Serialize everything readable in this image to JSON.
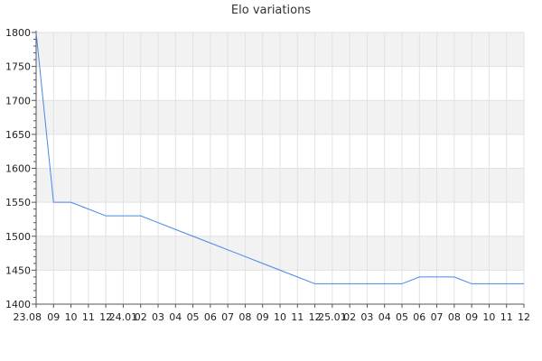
{
  "chart_data": {
    "type": "line",
    "title": "Elo variations",
    "xlabel": "",
    "ylabel": "",
    "ylim": [
      1400,
      1800
    ],
    "y_ticks": [
      1400,
      1450,
      1500,
      1550,
      1600,
      1650,
      1700,
      1750,
      1800
    ],
    "x_tick_labels": [
      "23.08",
      "09",
      "10",
      "11",
      "12",
      "24.01",
      "02",
      "03",
      "04",
      "05",
      "06",
      "07",
      "08",
      "09",
      "10",
      "11",
      "12",
      "25.01",
      "02",
      "03",
      "04",
      "05",
      "06",
      "07",
      "08",
      "09",
      "10",
      "11",
      "12"
    ],
    "grid": true,
    "line_color": "#4a86e8",
    "band_color": "#f2f2f2",
    "series": [
      {
        "values": [
          1800,
          1550,
          1550,
          1540,
          1530,
          1530,
          1530,
          1520,
          1510,
          1500,
          1490,
          1480,
          1470,
          1460,
          1450,
          1440,
          1430,
          1430,
          1430,
          1430,
          1430,
          1430,
          1440,
          1440,
          1440,
          1430,
          1430,
          1430,
          1430
        ]
      }
    ]
  }
}
